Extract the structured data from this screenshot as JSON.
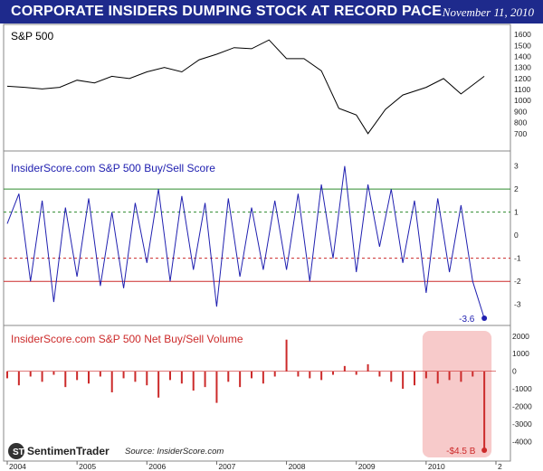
{
  "header": {
    "title": "CORPORATE INSIDERS DUMPING STOCK AT RECORD PACE",
    "date": "November 11, 2010"
  },
  "footer": {
    "logo_text": "SentimenTrader",
    "source": "Source:  InsiderScore.com"
  },
  "colors": {
    "header_bg": "#1e2a8c",
    "sp500_line": "#000000",
    "score_line": "#2020b0",
    "upper_band": "#2e8b2e",
    "lower_band": "#cc2a2a",
    "volume_bars": "#cc2a2a",
    "highlight": "#f4b8b8"
  },
  "chart_data": [
    {
      "type": "line",
      "panel": "sp500",
      "title": "S&P 500",
      "ylim": [
        600,
        1650
      ],
      "yticks": [
        "1600",
        "1500",
        "1400",
        "1300",
        "1200",
        "1100",
        "1000",
        "900",
        "800",
        "700"
      ],
      "x": [
        "2004-01",
        "2004-04",
        "2004-07",
        "2004-10",
        "2005-01",
        "2005-04",
        "2005-07",
        "2005-10",
        "2006-01",
        "2006-04",
        "2006-07",
        "2006-10",
        "2007-01",
        "2007-04",
        "2007-07",
        "2007-10",
        "2008-01",
        "2008-04",
        "2008-07",
        "2008-10",
        "2009-01",
        "2009-03",
        "2009-06",
        "2009-09",
        "2010-01",
        "2010-04",
        "2010-07",
        "2010-11"
      ],
      "values": [
        1130,
        1120,
        1105,
        1120,
        1185,
        1160,
        1220,
        1200,
        1260,
        1300,
        1260,
        1370,
        1420,
        1480,
        1470,
        1550,
        1380,
        1380,
        1270,
        930,
        870,
        700,
        920,
        1050,
        1120,
        1200,
        1060,
        1220
      ]
    },
    {
      "type": "line",
      "panel": "score",
      "title": "InsiderScore.com S&P 500 Buy/Sell Score",
      "ylim": [
        -3.6,
        3.3
      ],
      "yticks": [
        "3",
        "2",
        "1",
        "0",
        "-1",
        "-2",
        "-3"
      ],
      "reference_lines": [
        {
          "value": 2,
          "style": "solid",
          "color": "#2e8b2e"
        },
        {
          "value": 1,
          "style": "dashed",
          "color": "#2e8b2e"
        },
        {
          "value": -1,
          "style": "dashed",
          "color": "#cc2a2a"
        },
        {
          "value": -2,
          "style": "solid",
          "color": "#cc2a2a"
        }
      ],
      "x": [
        "2004-01",
        "2004-03",
        "2004-05",
        "2004-07",
        "2004-09",
        "2004-11",
        "2005-01",
        "2005-03",
        "2005-05",
        "2005-07",
        "2005-09",
        "2005-11",
        "2006-01",
        "2006-03",
        "2006-05",
        "2006-07",
        "2006-09",
        "2006-11",
        "2007-01",
        "2007-03",
        "2007-05",
        "2007-07",
        "2007-09",
        "2007-11",
        "2008-01",
        "2008-03",
        "2008-05",
        "2008-07",
        "2008-09",
        "2008-11",
        "2009-01",
        "2009-03",
        "2009-05",
        "2009-07",
        "2009-09",
        "2009-11",
        "2010-01",
        "2010-03",
        "2010-05",
        "2010-07",
        "2010-09",
        "2010-11"
      ],
      "values": [
        0.5,
        1.8,
        -2.0,
        1.5,
        -2.9,
        1.2,
        -1.8,
        1.6,
        -2.2,
        1.0,
        -2.3,
        1.4,
        -1.2,
        2.0,
        -2.0,
        1.7,
        -1.5,
        1.4,
        -3.1,
        1.6,
        -1.8,
        1.2,
        -1.5,
        1.5,
        -1.5,
        1.8,
        -2.0,
        2.2,
        -1.0,
        3.0,
        -1.6,
        2.2,
        -0.5,
        2.0,
        -1.2,
        1.5,
        -2.5,
        1.6,
        -1.6,
        1.3,
        -2.0,
        -3.6
      ],
      "annotation": {
        "label": "-3.6",
        "value": -3.6
      }
    },
    {
      "type": "bar",
      "panel": "volume",
      "title": "InsiderScore.com S&P 500 Net Buy/Sell Volume",
      "ylim": [
        -4600,
        2300
      ],
      "yticks": [
        "2000",
        "1000",
        "0",
        "-1000",
        "-2000",
        "-3000",
        "-4000"
      ],
      "annotation": {
        "label": "-$4.5 B",
        "value": -4500
      },
      "highlight_range": [
        "2010-01",
        "2010-11"
      ],
      "x": [
        "2004-01",
        "2004-03",
        "2004-05",
        "2004-07",
        "2004-09",
        "2004-11",
        "2005-01",
        "2005-03",
        "2005-05",
        "2005-07",
        "2005-09",
        "2005-11",
        "2006-01",
        "2006-03",
        "2006-05",
        "2006-07",
        "2006-09",
        "2006-11",
        "2007-01",
        "2007-03",
        "2007-05",
        "2007-07",
        "2007-09",
        "2007-11",
        "2008-01",
        "2008-03",
        "2008-05",
        "2008-07",
        "2008-09",
        "2008-11",
        "2009-01",
        "2009-03",
        "2009-05",
        "2009-07",
        "2009-09",
        "2009-11",
        "2010-01",
        "2010-03",
        "2010-05",
        "2010-07",
        "2010-09",
        "2010-11"
      ],
      "values": [
        -400,
        -800,
        -300,
        -600,
        -200,
        -900,
        -500,
        -700,
        -300,
        -1200,
        -400,
        -600,
        -800,
        -1500,
        -500,
        -700,
        -1100,
        -900,
        -1800,
        -600,
        -900,
        -400,
        -700,
        -300,
        1800,
        -300,
        -400,
        -500,
        -200,
        300,
        -200,
        400,
        -300,
        -600,
        -1000,
        -800,
        -400,
        -700,
        -500,
        -600,
        -300,
        -4500
      ]
    }
  ],
  "x_axis": {
    "labels": [
      "2004",
      "2005",
      "2006",
      "2007",
      "2008",
      "2009",
      "2010",
      "2"
    ]
  }
}
